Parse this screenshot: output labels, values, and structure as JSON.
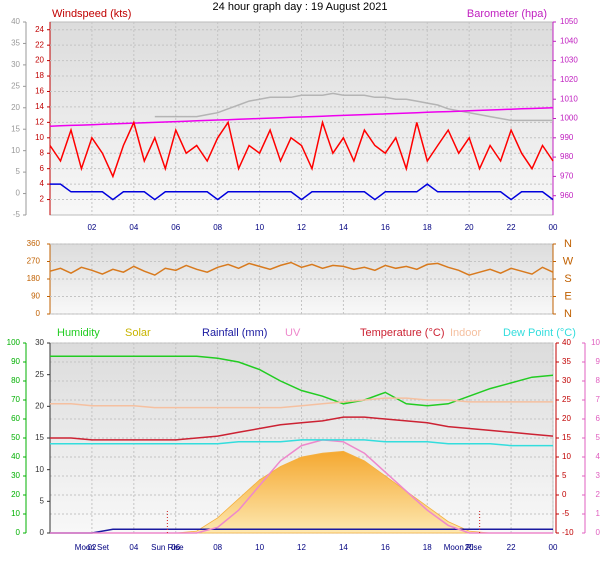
{
  "chart_data": [
    {
      "type": "line",
      "title": "24 hour graph day : 19 August 2021",
      "y_label": "Windspeed (kts)",
      "y2_label": "Barometer (hpa)",
      "grid": true,
      "x": [
        0,
        0.5,
        1,
        1.5,
        2,
        2.5,
        3,
        3.5,
        4,
        4.5,
        5,
        5.5,
        6,
        6.5,
        7,
        7.5,
        8,
        8.5,
        9,
        9.5,
        10,
        10.5,
        11,
        11.5,
        12,
        12.5,
        13,
        13.5,
        14,
        14.5,
        15,
        15.5,
        16,
        16.5,
        17,
        17.5,
        18,
        18.5,
        19,
        19.5,
        20,
        20.5,
        21,
        21.5,
        22,
        22.5,
        23,
        23.5,
        24
      ],
      "xlim": [
        0,
        24
      ],
      "xticks": [
        {
          "value": 2,
          "label": "02"
        },
        {
          "value": 4,
          "label": "04"
        },
        {
          "value": 6,
          "label": "06"
        },
        {
          "value": 8,
          "label": "08"
        },
        10,
        12,
        14,
        16,
        18,
        20,
        22,
        {
          "value": 24,
          "label": "00"
        }
      ],
      "ylim": [
        0,
        25
      ],
      "yticks": [
        2,
        4,
        6,
        8,
        10,
        12,
        14,
        16,
        18,
        20,
        22,
        24
      ],
      "y2lim": [
        950,
        1050
      ],
      "y2ticks": [
        960,
        970,
        980,
        990,
        1000,
        1010,
        1020,
        1030,
        1040,
        1050
      ],
      "y3lim": [
        -5,
        40
      ],
      "y3ticks": [
        -5,
        0,
        5,
        10,
        15,
        20,
        25,
        30,
        35,
        40
      ],
      "series": [
        {
          "color": "#b4b4b4",
          "axis": "y2",
          "values": [
            null,
            null,
            null,
            null,
            null,
            null,
            null,
            null,
            null,
            null,
            1001,
            1001,
            1001,
            1001,
            1001,
            1002,
            1003,
            1005,
            1007,
            1009,
            1010,
            1011,
            1011,
            1011,
            1012,
            1012,
            1012,
            1013,
            1012,
            1012,
            1012,
            1011,
            1011,
            1010,
            1010,
            1009,
            1008,
            1007,
            1005,
            1004,
            1003,
            1002,
            1001,
            1000,
            999,
            999,
            999,
            999,
            999
          ]
        },
        {
          "color": "#ee00ee",
          "axis": "y2",
          "values": [
            996,
            996.2,
            996.4,
            996.6,
            996.8,
            997,
            997.2,
            997.4,
            997.6,
            997.8,
            998,
            998.2,
            998.4,
            998.6,
            998.8,
            999,
            999.2,
            999.4,
            999.6,
            999.8,
            1000,
            1000.2,
            1000.4,
            1000.6,
            1000.8,
            1001,
            1001.2,
            1001.4,
            1001.6,
            1001.8,
            1002,
            1002.2,
            1002.4,
            1002.6,
            1002.8,
            1003,
            1003.2,
            1003.4,
            1003.6,
            1003.8,
            1004,
            1004.2,
            1004.4,
            1004.6,
            1004.8,
            1005,
            1005.2,
            1005.4,
            1005.6
          ]
        },
        {
          "color": "#ff0000",
          "axis": "y",
          "values": [
            9,
            7,
            11,
            6,
            10,
            8,
            5,
            9,
            12,
            7,
            10,
            6,
            11,
            8,
            9,
            7,
            10,
            12,
            6,
            9,
            8,
            11,
            7,
            10,
            9,
            6,
            12,
            8,
            10,
            7,
            11,
            9,
            8,
            10,
            6,
            12,
            7,
            9,
            11,
            8,
            10,
            6,
            9,
            7,
            11,
            8,
            6,
            9,
            7
          ]
        },
        {
          "color": "#0000dd",
          "axis": "y",
          "values": [
            4,
            4,
            3,
            3,
            3,
            3,
            2,
            3,
            3,
            3,
            2,
            3,
            3,
            3,
            3,
            3,
            2,
            3,
            3,
            3,
            3,
            3,
            3,
            3,
            2,
            3,
            3,
            3,
            3,
            3,
            3,
            2,
            3,
            3,
            3,
            3,
            4,
            3,
            3,
            3,
            3,
            3,
            3,
            3,
            2,
            3,
            3,
            3,
            2
          ]
        }
      ]
    },
    {
      "type": "line",
      "grid": true,
      "x": [
        0,
        0.5,
        1,
        1.5,
        2,
        2.5,
        3,
        3.5,
        4,
        4.5,
        5,
        5.5,
        6,
        6.5,
        7,
        7.5,
        8,
        8.5,
        9,
        9.5,
        10,
        10.5,
        11,
        11.5,
        12,
        12.5,
        13,
        13.5,
        14,
        14.5,
        15,
        15.5,
        16,
        16.5,
        17,
        17.5,
        18,
        18.5,
        19,
        19.5,
        20,
        20.5,
        21,
        21.5,
        22,
        22.5,
        23,
        23.5,
        24
      ],
      "xlim": [
        0,
        24
      ],
      "xticks": [
        2,
        4,
        6,
        8,
        10,
        12,
        14,
        16,
        18,
        20,
        22,
        24
      ],
      "ylim": [
        0,
        360
      ],
      "yticks": [
        0,
        90,
        180,
        270,
        360
      ],
      "y2lim": [
        0,
        360
      ],
      "y2ticks": [
        {
          "value": 360,
          "label": "N"
        },
        {
          "value": 270,
          "label": "W"
        },
        {
          "value": 180,
          "label": "S"
        },
        {
          "value": 90,
          "label": "E"
        },
        {
          "value": 0,
          "label": "N"
        }
      ],
      "series": [
        {
          "color": "#d87a1e",
          "axis": "y",
          "values": [
            220,
            235,
            210,
            240,
            225,
            205,
            230,
            215,
            245,
            220,
            200,
            235,
            225,
            250,
            230,
            215,
            240,
            255,
            235,
            260,
            245,
            230,
            250,
            265,
            240,
            255,
            235,
            250,
            245,
            230,
            240,
            225,
            250,
            235,
            245,
            230,
            255,
            260,
            240,
            225,
            200,
            215,
            230,
            210,
            235,
            220,
            205,
            240,
            215
          ]
        }
      ]
    },
    {
      "type": "line",
      "grid": true,
      "x": [
        0,
        1,
        2,
        3,
        4,
        5,
        6,
        7,
        8,
        9,
        10,
        11,
        12,
        13,
        14,
        15,
        16,
        17,
        18,
        19,
        20,
        21,
        22,
        23,
        24
      ],
      "xlim": [
        0,
        24
      ],
      "xticks": [
        {
          "value": 2,
          "label": "02"
        },
        {
          "value": 4,
          "label": "04"
        },
        {
          "value": 6,
          "label": "06"
        },
        {
          "value": 8,
          "label": "08"
        },
        10,
        12,
        14,
        16,
        18,
        20,
        22,
        {
          "value": 24,
          "label": "00"
        }
      ],
      "ylim": [
        0,
        100
      ],
      "yticks": [
        0,
        10,
        20,
        30,
        40,
        50,
        60,
        70,
        80,
        90,
        100
      ],
      "y2lim": [
        -10,
        40
      ],
      "y2ticks": [
        -10,
        -5,
        0,
        5,
        10,
        15,
        20,
        25,
        30,
        35,
        40
      ],
      "y3lim": [
        0,
        30
      ],
      "y3ticks": [
        0,
        5,
        10,
        15,
        20,
        25,
        30
      ],
      "y4lim": [
        0,
        10
      ],
      "y4ticks": [
        0,
        1,
        2,
        3,
        4,
        5,
        6,
        7,
        8,
        9,
        10
      ],
      "annotations": [
        {
          "text": "Moon Set",
          "x": 2
        },
        {
          "text": "Sun Rise",
          "x": 5.6
        },
        {
          "text": "Moon Rise",
          "x": 19.7
        }
      ],
      "sun_lines": [
        5.6,
        20.5
      ],
      "series": [
        {
          "name": "Humidity",
          "color": "#22cc22",
          "axis": "y",
          "values": [
            93,
            93,
            93,
            93,
            93,
            93,
            93,
            93,
            92,
            90,
            86,
            80,
            75,
            72,
            68,
            70,
            74,
            68,
            67,
            68,
            72,
            76,
            79,
            82,
            83
          ]
        },
        {
          "name": "Solar",
          "color": "#f5b040",
          "axis": "y",
          "area": true,
          "values": [
            0,
            0,
            0,
            0,
            0,
            0,
            0,
            1,
            8,
            18,
            28,
            35,
            40,
            42,
            43,
            38,
            30,
            22,
            14,
            6,
            1,
            0,
            0,
            0,
            0
          ]
        },
        {
          "name": "Rainfall (mm)",
          "color": "#1a1aa0",
          "axis": "y3",
          "values": [
            0,
            0,
            0,
            0.6,
            0.6,
            0.6,
            0.6,
            0.6,
            0.6,
            0.6,
            0.6,
            0.6,
            0.6,
            0.6,
            0.6,
            0.6,
            0.6,
            0.6,
            0.6,
            0.6,
            0.6,
            0.6,
            0.6,
            0.6,
            0.6
          ]
        },
        {
          "name": "UV",
          "color": "#ee88cc",
          "axis": "y4",
          "values": [
            0,
            0,
            0,
            0,
            0,
            0,
            0,
            0,
            0.3,
            1.2,
            2.5,
            3.8,
            4.6,
            4.9,
            4.8,
            4.2,
            3.2,
            2.2,
            1.2,
            0.4,
            0,
            0,
            0,
            0,
            0
          ]
        },
        {
          "name": "Temperature (°C)",
          "color": "#cc2233",
          "axis": "y2",
          "values": [
            15,
            15,
            14.5,
            14.5,
            14.5,
            14.5,
            14.5,
            15,
            15.5,
            16.5,
            17.5,
            18.5,
            19,
            19.5,
            20.5,
            20.5,
            20,
            19.5,
            19,
            18,
            17.5,
            17,
            16.5,
            16,
            15.5
          ]
        },
        {
          "name": "Indoor",
          "color": "#f5c0a0",
          "axis": "y2",
          "values": [
            24,
            24,
            23.5,
            23.5,
            23.5,
            23,
            23,
            23,
            23,
            23,
            23,
            23,
            23.5,
            24,
            24.5,
            25,
            25.5,
            25.5,
            25,
            25,
            24.5,
            24.5,
            24.5,
            24.5,
            24.5
          ]
        },
        {
          "name": "Dew Point (°C)",
          "color": "#33dddd",
          "axis": "y2",
          "values": [
            13.5,
            13.5,
            13.5,
            13.5,
            13.5,
            13.5,
            13.5,
            13.5,
            13.5,
            14,
            14,
            14,
            14.5,
            14.5,
            14.5,
            14.5,
            14,
            14,
            14,
            13.5,
            13.5,
            13.5,
            13,
            13,
            13
          ]
        }
      ]
    }
  ]
}
